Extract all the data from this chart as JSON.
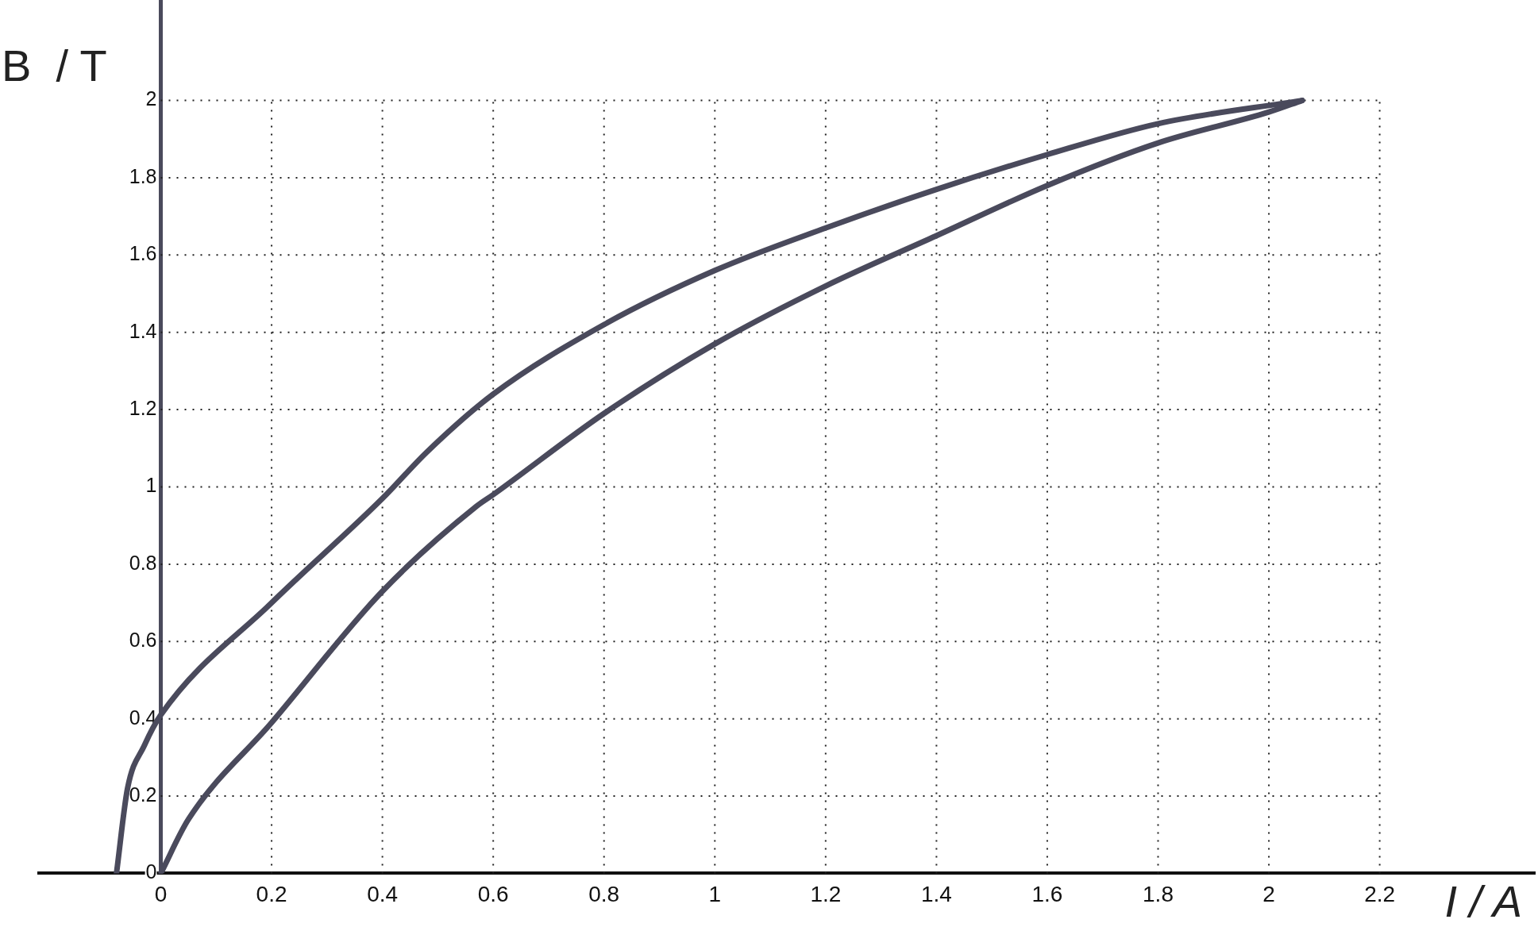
{
  "chart_data": {
    "type": "line",
    "xlabel": "I / A",
    "ylabel": "B  / T",
    "xlim": [
      -0.22,
      2.48
    ],
    "ylim": [
      0,
      2.26
    ],
    "xticks": [
      0,
      0.2,
      0.4,
      0.6,
      0.8,
      1,
      1.2,
      1.4,
      1.6,
      1.8,
      2,
      2.2
    ],
    "yticks": [
      0,
      0.2,
      0.4,
      0.6,
      0.8,
      1,
      1.2,
      1.4,
      1.6,
      1.8,
      2
    ],
    "grid": true,
    "legend": false,
    "marker": "none",
    "line_style": "solid",
    "series": [
      {
        "color": "#4a4a5c",
        "x": [
          2.06,
          1.8,
          1.6,
          1.4,
          1.2,
          1,
          0.8,
          0.6,
          0.48,
          0.4,
          0.2,
          0,
          -0.03,
          -0.06,
          -0.08
        ],
        "values": [
          2.0,
          1.94,
          1.86,
          1.77,
          1.67,
          1.56,
          1.42,
          1.24,
          1.09,
          0.97,
          0.7,
          0.41,
          0.33,
          0.22,
          0
        ]
      },
      {
        "color": "#4a4a5c",
        "x": [
          0,
          0.05,
          0.2,
          0.4,
          0.57,
          0.6,
          0.8,
          1,
          1.2,
          1.4,
          1.6,
          1.8,
          2,
          2.06
        ],
        "values": [
          0,
          0.14,
          0.39,
          0.73,
          0.95,
          0.98,
          1.19,
          1.37,
          1.52,
          1.65,
          1.78,
          1.89,
          1.97,
          2.0
        ]
      }
    ]
  }
}
